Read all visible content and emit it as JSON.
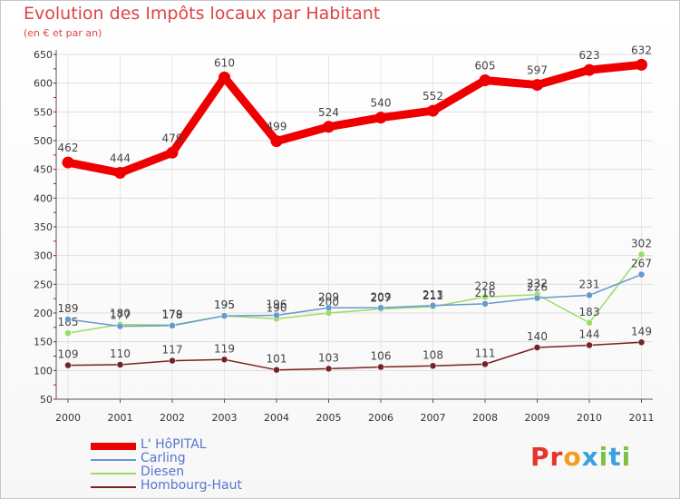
{
  "chart_data": {
    "type": "line",
    "title": "Evolution des Impôts locaux par Habitant",
    "subtitle": "(en € et par an)",
    "categories": [
      "2000",
      "2001",
      "2002",
      "2003",
      "2004",
      "2005",
      "2006",
      "2007",
      "2008",
      "2009",
      "2010",
      "2011"
    ],
    "ylim": [
      50,
      650
    ],
    "yticks": [
      50,
      100,
      150,
      200,
      250,
      300,
      350,
      400,
      450,
      500,
      550,
      600,
      650
    ],
    "series": [
      {
        "name": "L' HôPITAL",
        "color": "#ee0000",
        "values": [
          462,
          444,
          479,
          610,
          499,
          524,
          540,
          552,
          605,
          597,
          623,
          632
        ]
      },
      {
        "name": "Carling",
        "color": "#6699cc",
        "values": [
          189,
          177,
          178,
          195,
          196,
          209,
          209,
          213,
          216,
          226,
          231,
          267
        ]
      },
      {
        "name": "Diesen",
        "color": "#99dd66",
        "values": [
          165,
          180,
          179,
          195,
          190,
          200,
          207,
          211,
          228,
          232,
          183,
          302
        ]
      },
      {
        "name": "Hombourg-Haut",
        "color": "#772222",
        "values": [
          109,
          110,
          117,
          119,
          101,
          103,
          106,
          108,
          111,
          140,
          144,
          149
        ]
      }
    ]
  },
  "logo": {
    "text": "Proxiti",
    "letters": [
      "P",
      "r",
      "o",
      "x",
      "i",
      "t",
      "i"
    ],
    "colors": [
      "#e8322a",
      "#e8322a",
      "#f39c1f",
      "#3aa0e0",
      "#7cc242",
      "#3aa0e0",
      "#7cc242"
    ]
  }
}
